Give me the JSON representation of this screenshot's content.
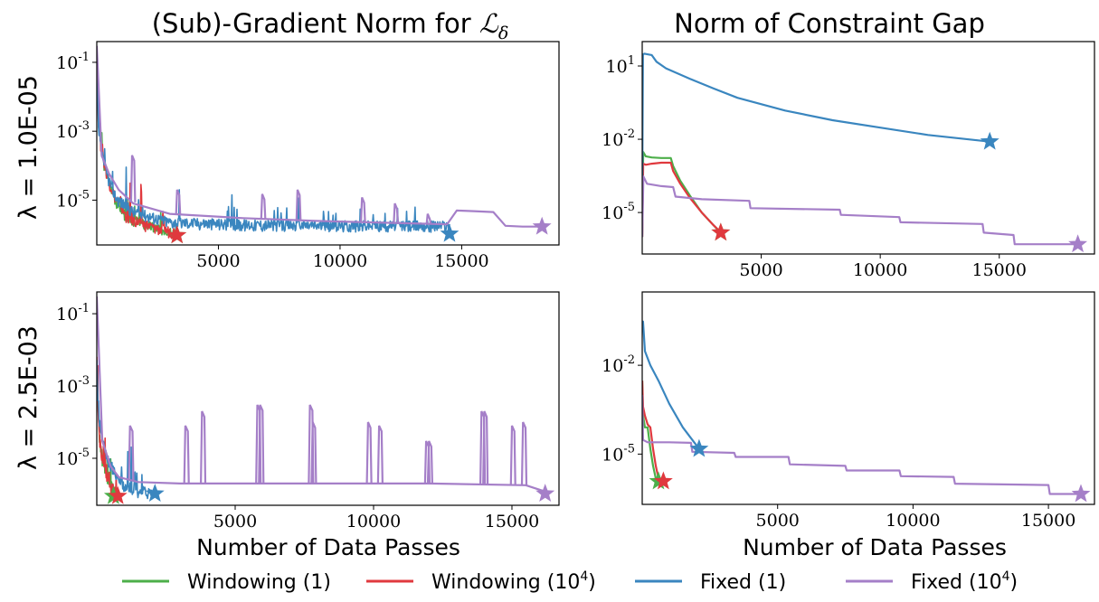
{
  "figure": {
    "col_titles": [
      "(Sub)-Gradient Norm for ",
      "Norm of Constraint Gap"
    ],
    "col_title_symbol": "ℒ",
    "col_title_subscript": "δ",
    "row_labels": [
      "λ = 1.0E-05",
      "λ = 2.5E-03"
    ],
    "xlabel": "Number of Data Passes"
  },
  "legend": {
    "items": [
      {
        "label": "Windowing (1)",
        "color": "#4daf4a",
        "base": "Windowing (1)",
        "sup": ""
      },
      {
        "label": "Windowing (10^4)",
        "color": "#e0393e",
        "base": "Windowing (10",
        "sup": "4"
      },
      {
        "label": "Fixed (1)",
        "color": "#3a86bf",
        "base": "Fixed (1)",
        "sup": ""
      },
      {
        "label": "Fixed (10^4)",
        "color": "#a57fc8",
        "base": "Fixed (10",
        "sup": "4"
      }
    ]
  },
  "chart_data": [
    {
      "type": "line",
      "title": "(Sub)-Gradient Norm for ℒδ",
      "ylabel": "λ = 1.0E-05",
      "xlabel": "",
      "yscale": "log",
      "xlim": [
        0,
        19000
      ],
      "ylim": [
        5e-07,
        0.4
      ],
      "xticks": [
        5000,
        10000,
        15000
      ],
      "yticks": [
        0.1,
        0.001,
        1e-05
      ],
      "ytick_labels": [
        "10^-1",
        "10^-3",
        "10^-5"
      ],
      "series": [
        {
          "name": "Windowing (1)",
          "color": "#4daf4a",
          "noisy": true,
          "x": [
            0,
            60,
            150,
            300,
            500,
            800,
            1200,
            1700,
            2300,
            2900,
            3350
          ],
          "y": [
            0.2,
            0.003,
            0.0005,
            0.0001,
            3e-05,
            8e-06,
            3e-06,
            2e-06,
            1.4e-06,
            1.2e-06,
            1.1e-06
          ],
          "end_star": [
            3300,
            9.5e-07
          ]
        },
        {
          "name": "Windowing (10^4)",
          "color": "#e0393e",
          "noisy": true,
          "x": [
            0,
            60,
            150,
            300,
            500,
            800,
            1200,
            1700,
            2300,
            2900,
            3350
          ],
          "y": [
            0.15,
            0.002,
            0.0004,
            0.0001,
            3e-05,
            9e-06,
            3e-06,
            2e-06,
            1.4e-06,
            1.1e-06,
            1e-06
          ],
          "end_star": [
            3300,
            9.5e-07
          ]
        },
        {
          "name": "Fixed (1)",
          "color": "#3a86bf",
          "noisy": true,
          "x": [
            0,
            60,
            200,
            400,
            800,
            1500,
            3000,
            6000,
            9000,
            12000,
            14500
          ],
          "y": [
            0.1,
            0.001,
            0.0002,
            5e-05,
            1e-05,
            4e-06,
            2e-06,
            1.7e-06,
            1.6e-06,
            1.6e-06,
            1.6e-06
          ],
          "end_star": [
            14500,
            1.05e-06
          ]
        },
        {
          "name": "Fixed (10^4)",
          "color": "#a57fc8",
          "noisy": false,
          "x": [
            0,
            200,
            500,
            900,
            1500,
            3000,
            6000,
            9000,
            12000,
            14400,
            14800,
            15500,
            16300,
            16800,
            17500,
            18300
          ],
          "y": [
            0.3,
            0.0002,
            6e-05,
            2e-05,
            8e-06,
            4e-06,
            3e-06,
            2.5e-06,
            2.2e-06,
            2e-06,
            5e-06,
            4.8e-06,
            4.5e-06,
            1.8e-06,
            1.7e-06,
            1.7e-06
          ],
          "spikes": [
            [
              1450,
              0.0002
            ],
            [
              3300,
              2e-05
            ],
            [
              6800,
              1.5e-05
            ],
            [
              8250,
              2e-05
            ],
            [
              10900,
              1.2e-05
            ],
            [
              12250,
              8e-06
            ],
            [
              13600,
              4e-06
            ]
          ],
          "end_star": [
            18300,
            1.7e-06
          ]
        }
      ]
    },
    {
      "type": "line",
      "title": "Norm of Constraint Gap",
      "ylabel": "",
      "xlabel": "",
      "yscale": "log",
      "xlim": [
        0,
        19000
      ],
      "ylim": [
        2e-07,
        100
      ],
      "xticks": [
        5000,
        10000,
        15000
      ],
      "yticks": [
        10,
        0.01,
        1e-05
      ],
      "ytick_labels": [
        "10^1",
        "10^-2",
        "10^-5"
      ],
      "series": [
        {
          "name": "Windowing (1)",
          "color": "#4daf4a",
          "noisy": false,
          "x": [
            0,
            40,
            150,
            400,
            800,
            1200,
            1300,
            1600,
            2000,
            2500,
            3000,
            3350
          ],
          "y": [
            1e-06,
            0.003,
            0.002,
            0.0018,
            0.0017,
            0.0017,
            0.0008,
            0.0002,
            5e-05,
            1e-05,
            3e-06,
            1.3e-06
          ],
          "end_star": [
            3300,
            1.5e-06
          ]
        },
        {
          "name": "Windowing (10^4)",
          "color": "#e0393e",
          "noisy": false,
          "x": [
            0,
            40,
            150,
            400,
            800,
            1200,
            1300,
            1600,
            2000,
            2500,
            3000,
            3350
          ],
          "y": [
            1e-06,
            0.001,
            0.0009,
            0.001,
            0.0011,
            0.0011,
            0.0005,
            0.00015,
            4e-05,
            1e-05,
            3e-06,
            1.4e-06
          ],
          "end_star": [
            3300,
            1.5e-06
          ]
        },
        {
          "name": "Fixed (1)",
          "color": "#3a86bf",
          "noisy": false,
          "x": [
            0,
            30,
            100,
            400,
            600,
            1000,
            2000,
            3000,
            4000,
            6000,
            8000,
            10000,
            12000,
            14600
          ],
          "y": [
            5e-05,
            30,
            32,
            28,
            15,
            8,
            3,
            1.2,
            0.5,
            0.15,
            0.06,
            0.03,
            0.015,
            0.008
          ],
          "end_star": [
            14600,
            0.008
          ]
        },
        {
          "name": "Fixed (10^4)",
          "color": "#a57fc8",
          "noisy": false,
          "x": [
            0,
            50,
            200,
            800,
            1300,
            1400,
            2500,
            4500,
            4550,
            8300,
            8350,
            10800,
            10850,
            14300,
            14350,
            15600,
            15650,
            18300
          ],
          "y": [
            1e-06,
            0.0003,
            0.00015,
            0.00012,
            0.00011,
            4.5e-05,
            3.5e-05,
            3e-05,
            1.5e-05,
            1.3e-05,
            8e-06,
            6.5e-06,
            4e-06,
            3.4e-06,
            1.5e-06,
            1.2e-06,
            5e-07,
            5e-07
          ],
          "end_star": [
            18300,
            5e-07
          ]
        }
      ]
    },
    {
      "type": "line",
      "title": "",
      "ylabel": "λ = 2.5E-03",
      "xlabel": "Number of Data Passes",
      "yscale": "log",
      "xlim": [
        0,
        16700
      ],
      "ylim": [
        5e-07,
        0.4
      ],
      "xticks": [
        5000,
        10000,
        15000
      ],
      "yticks": [
        0.1,
        0.001,
        1e-05
      ],
      "ytick_labels": [
        "10^-1",
        "10^-3",
        "10^-5"
      ],
      "series": [
        {
          "name": "Windowing (1)",
          "color": "#4daf4a",
          "noisy": true,
          "x": [
            0,
            40,
            100,
            200,
            350,
            500,
            700
          ],
          "y": [
            0.003,
            0.0002,
            3e-05,
            8e-06,
            3e-06,
            1.5e-06,
            1.1e-06
          ],
          "end_star": [
            600,
            9e-07
          ]
        },
        {
          "name": "Windowing (10^4)",
          "color": "#e0393e",
          "noisy": true,
          "x": [
            0,
            40,
            100,
            200,
            350,
            500,
            750
          ],
          "y": [
            0.002,
            0.0002,
            3e-05,
            8e-06,
            3e-06,
            1.5e-06,
            1.1e-06
          ],
          "end_star": [
            760,
            9e-07
          ]
        },
        {
          "name": "Fixed (1)",
          "color": "#3a86bf",
          "noisy": true,
          "x": [
            0,
            40,
            100,
            200,
            400,
            700,
            1000,
            1500,
            2100
          ],
          "y": [
            0.004,
            0.0005,
            0.0001,
            3e-05,
            8e-06,
            3e-06,
            1.5e-06,
            1.1e-06,
            1e-06
          ],
          "end_star": [
            2100,
            1.05e-06
          ]
        },
        {
          "name": "Fixed (10^4)",
          "color": "#a57fc8",
          "noisy": false,
          "x": [
            0,
            200,
            500,
            800,
            1500,
            3000,
            6000,
            9000,
            12000,
            15500,
            16200
          ],
          "y": [
            0.3,
            3e-05,
            6e-06,
            3e-06,
            2.2e-06,
            2e-06,
            2e-06,
            2e-06,
            2e-06,
            1.8e-06,
            1.2e-06
          ],
          "spikes": [
            [
              1200,
              8e-05
            ],
            [
              3200,
              8e-05
            ],
            [
              3800,
              0.0002
            ],
            [
              5800,
              0.0003
            ],
            [
              5900,
              0.0003
            ],
            [
              7700,
              0.0003
            ],
            [
              7800,
              0.0001
            ],
            [
              9800,
              0.0001
            ],
            [
              10200,
              8e-05
            ],
            [
              11900,
              3e-05
            ],
            [
              12000,
              3e-05
            ],
            [
              13900,
              0.0002
            ],
            [
              14000,
              0.0002
            ],
            [
              15000,
              8e-05
            ],
            [
              15400,
              0.0001
            ]
          ],
          "end_star": [
            16200,
            1.05e-06
          ]
        }
      ]
    },
    {
      "type": "line",
      "title": "",
      "ylabel": "",
      "xlabel": "Number of Data Passes",
      "yscale": "log",
      "xlim": [
        0,
        16700
      ],
      "ylim": [
        2e-07,
        3
      ],
      "xticks": [
        5000,
        10000,
        15000
      ],
      "yticks": [
        0.01,
        1e-05
      ],
      "ytick_labels": [
        "10^-2",
        "10^-5"
      ],
      "series": [
        {
          "name": "Windowing (1)",
          "color": "#4daf4a",
          "noisy": false,
          "x": [
            0,
            30,
            100,
            200,
            300,
            400,
            500,
            600
          ],
          "y": [
            0.003,
            0.0002,
            8e-05,
            8e-05,
            1.5e-05,
            4e-06,
            1.5e-06,
            1.2e-06
          ],
          "end_star": [
            600,
            1.2e-06
          ]
        },
        {
          "name": "Windowing (10^4)",
          "color": "#e0393e",
          "noisy": false,
          "x": [
            0,
            30,
            100,
            200,
            300,
            400,
            500,
            600,
            780
          ],
          "y": [
            0.003,
            0.0004,
            0.0002,
            0.0001,
            8e-05,
            1.5e-05,
            4e-06,
            1.5e-06,
            1.2e-06
          ],
          "end_star": [
            780,
            1.2e-06
          ]
        },
        {
          "name": "Fixed (1)",
          "color": "#3a86bf",
          "noisy": false,
          "x": [
            0,
            30,
            100,
            300,
            600,
            1000,
            1500,
            2100
          ],
          "y": [
            0.2,
            0.3,
            0.03,
            0.01,
            0.003,
            0.0005,
            8e-05,
            1.5e-05
          ],
          "end_star": [
            2100,
            1.5e-05
          ]
        },
        {
          "name": "Fixed (10^4)",
          "color": "#a57fc8",
          "noisy": false,
          "x": [
            0,
            30,
            200,
            1000,
            1800,
            1850,
            3400,
            3450,
            5400,
            5450,
            7500,
            7550,
            9500,
            9550,
            11500,
            11550,
            15000,
            15050,
            16200
          ],
          "y": [
            0.001,
            3e-05,
            2.5e-05,
            2.5e-05,
            2.4e-05,
            1.2e-05,
            1.1e-05,
            8e-06,
            8e-06,
            4.5e-06,
            4e-06,
            2.8e-06,
            2.8e-06,
            1.8e-06,
            1.7e-06,
            1e-06,
            9e-07,
            4.5e-07,
            4.5e-07
          ],
          "end_star": [
            16200,
            4.5e-07
          ]
        }
      ]
    }
  ]
}
